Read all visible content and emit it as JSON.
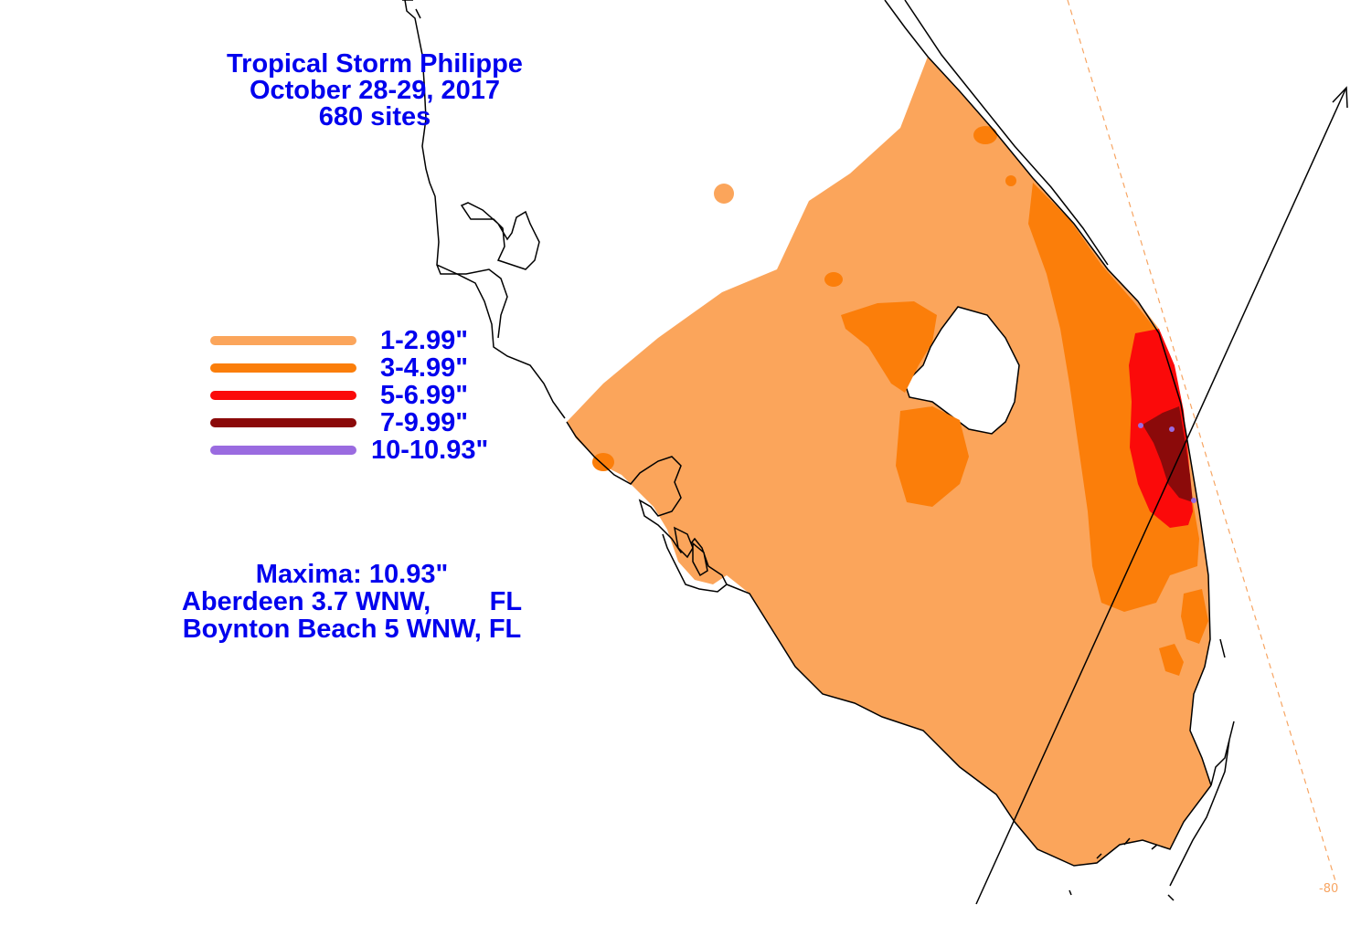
{
  "title": {
    "line1": "Tropical Storm Philippe",
    "line2": "October 28-29, 2017",
    "line3": "680 sites"
  },
  "legend": [
    {
      "label": "1-2.99\"",
      "color": "#fba55b"
    },
    {
      "label": "3-4.99\"",
      "color": "#fb7e0a"
    },
    {
      "label": "5-6.99\"",
      "color": "#fb0a0a"
    },
    {
      "label": "7-9.99\"",
      "color": "#8b0a0a"
    },
    {
      "label": "10-10.93\"",
      "color": "#9a6be0"
    }
  ],
  "maxima": {
    "heading": "Maxima: 10.93\"",
    "site1": "Aberdeen 3.7 WNW,        FL",
    "site2": "Boynton Beach 5 WNW, FL"
  },
  "longitude_label": "-80",
  "colors": {
    "text": "#0000ee",
    "coast": "#000000",
    "meridian": "#f7a563"
  }
}
